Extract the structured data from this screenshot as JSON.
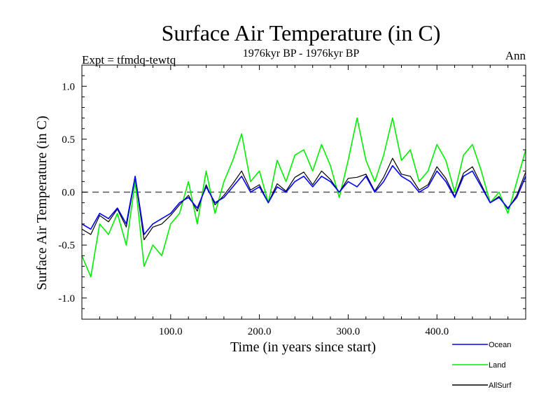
{
  "chart_data": {
    "type": "line",
    "title": "Surface Air Temperature (in C)",
    "subtitle": "1976kyr BP - 1976kyr BP",
    "experiment_label": "Expt = tfmdq-tewtq",
    "season_label": "Ann",
    "xlabel": "Time (in years since start)",
    "ylabel": "Surface Air Temperature (in C)",
    "xlim": [
      0,
      500
    ],
    "ylim": [
      -1.2,
      1.2
    ],
    "x_ticks": [
      100,
      200,
      300,
      400
    ],
    "x_tick_labels": [
      "100.0",
      "200.0",
      "300.0",
      "400.0"
    ],
    "y_ticks": [
      -1.0,
      -0.5,
      0.0,
      0.5,
      1.0
    ],
    "y_tick_labels": [
      "-1.0",
      "-0.5",
      "0.0",
      "0.5",
      "1.0"
    ],
    "reference_line": 0.0,
    "legend_position": "bottom-right",
    "series": [
      {
        "name": "Ocean",
        "color": "#0000ff",
        "x": [
          0,
          10,
          20,
          30,
          40,
          50,
          60,
          70,
          80,
          90,
          100,
          110,
          120,
          130,
          140,
          150,
          160,
          170,
          180,
          190,
          200,
          210,
          220,
          230,
          240,
          250,
          260,
          270,
          280,
          290,
          300,
          310,
          320,
          330,
          340,
          350,
          360,
          370,
          380,
          390,
          400,
          410,
          420,
          430,
          440,
          450,
          460,
          470,
          480,
          490,
          500
        ],
        "values": [
          -0.3,
          -0.35,
          -0.2,
          -0.25,
          -0.15,
          -0.3,
          0.15,
          -0.4,
          -0.3,
          -0.25,
          -0.2,
          -0.1,
          -0.05,
          -0.15,
          0.05,
          -0.1,
          -0.05,
          0.05,
          0.15,
          0.0,
          0.05,
          -0.1,
          0.05,
          0.0,
          0.1,
          0.15,
          0.05,
          0.15,
          0.1,
          0.0,
          0.1,
          0.05,
          0.15,
          0.0,
          0.1,
          0.25,
          0.15,
          0.1,
          0.0,
          0.05,
          0.2,
          0.1,
          -0.05,
          0.15,
          0.2,
          0.05,
          -0.1,
          -0.05,
          -0.15,
          -0.05,
          0.15
        ]
      },
      {
        "name": "Land",
        "color": "#00ee00",
        "x": [
          0,
          10,
          20,
          30,
          40,
          50,
          60,
          70,
          80,
          90,
          100,
          110,
          120,
          130,
          140,
          150,
          160,
          170,
          180,
          190,
          200,
          210,
          220,
          230,
          240,
          250,
          260,
          270,
          280,
          290,
          300,
          310,
          320,
          330,
          340,
          350,
          360,
          370,
          380,
          390,
          400,
          410,
          420,
          430,
          440,
          450,
          460,
          470,
          480,
          490,
          500
        ],
        "values": [
          -0.6,
          -0.8,
          -0.3,
          -0.4,
          -0.2,
          -0.5,
          0.1,
          -0.7,
          -0.5,
          -0.6,
          -0.3,
          -0.2,
          0.1,
          -0.3,
          0.2,
          -0.2,
          0.1,
          0.3,
          0.55,
          0.1,
          0.2,
          -0.1,
          0.3,
          0.1,
          0.35,
          0.4,
          0.2,
          0.45,
          0.25,
          -0.05,
          0.3,
          0.7,
          0.3,
          0.1,
          0.35,
          0.7,
          0.3,
          0.4,
          0.1,
          0.2,
          0.45,
          0.3,
          0.0,
          0.35,
          0.45,
          0.2,
          -0.1,
          0.0,
          -0.2,
          0.1,
          0.4
        ]
      },
      {
        "name": "AllSurf",
        "color": "#000000",
        "x": [
          0,
          10,
          20,
          30,
          40,
          50,
          60,
          70,
          80,
          90,
          100,
          110,
          120,
          130,
          140,
          150,
          160,
          170,
          180,
          190,
          200,
          210,
          220,
          230,
          240,
          250,
          260,
          270,
          280,
          290,
          300,
          310,
          320,
          330,
          340,
          350,
          360,
          370,
          380,
          390,
          400,
          410,
          420,
          430,
          440,
          450,
          460,
          470,
          480,
          490,
          500
        ],
        "values": [
          -0.35,
          -0.4,
          -0.22,
          -0.28,
          -0.16,
          -0.33,
          0.14,
          -0.45,
          -0.33,
          -0.3,
          -0.22,
          -0.12,
          -0.03,
          -0.18,
          0.07,
          -0.12,
          -0.03,
          0.08,
          0.2,
          0.02,
          0.07,
          -0.1,
          0.08,
          0.01,
          0.14,
          0.19,
          0.07,
          0.2,
          0.12,
          0.0,
          0.13,
          0.14,
          0.17,
          0.01,
          0.14,
          0.32,
          0.17,
          0.15,
          0.02,
          0.07,
          0.24,
          0.13,
          -0.04,
          0.18,
          0.24,
          0.07,
          -0.1,
          -0.04,
          -0.16,
          -0.03,
          0.19
        ]
      }
    ]
  }
}
